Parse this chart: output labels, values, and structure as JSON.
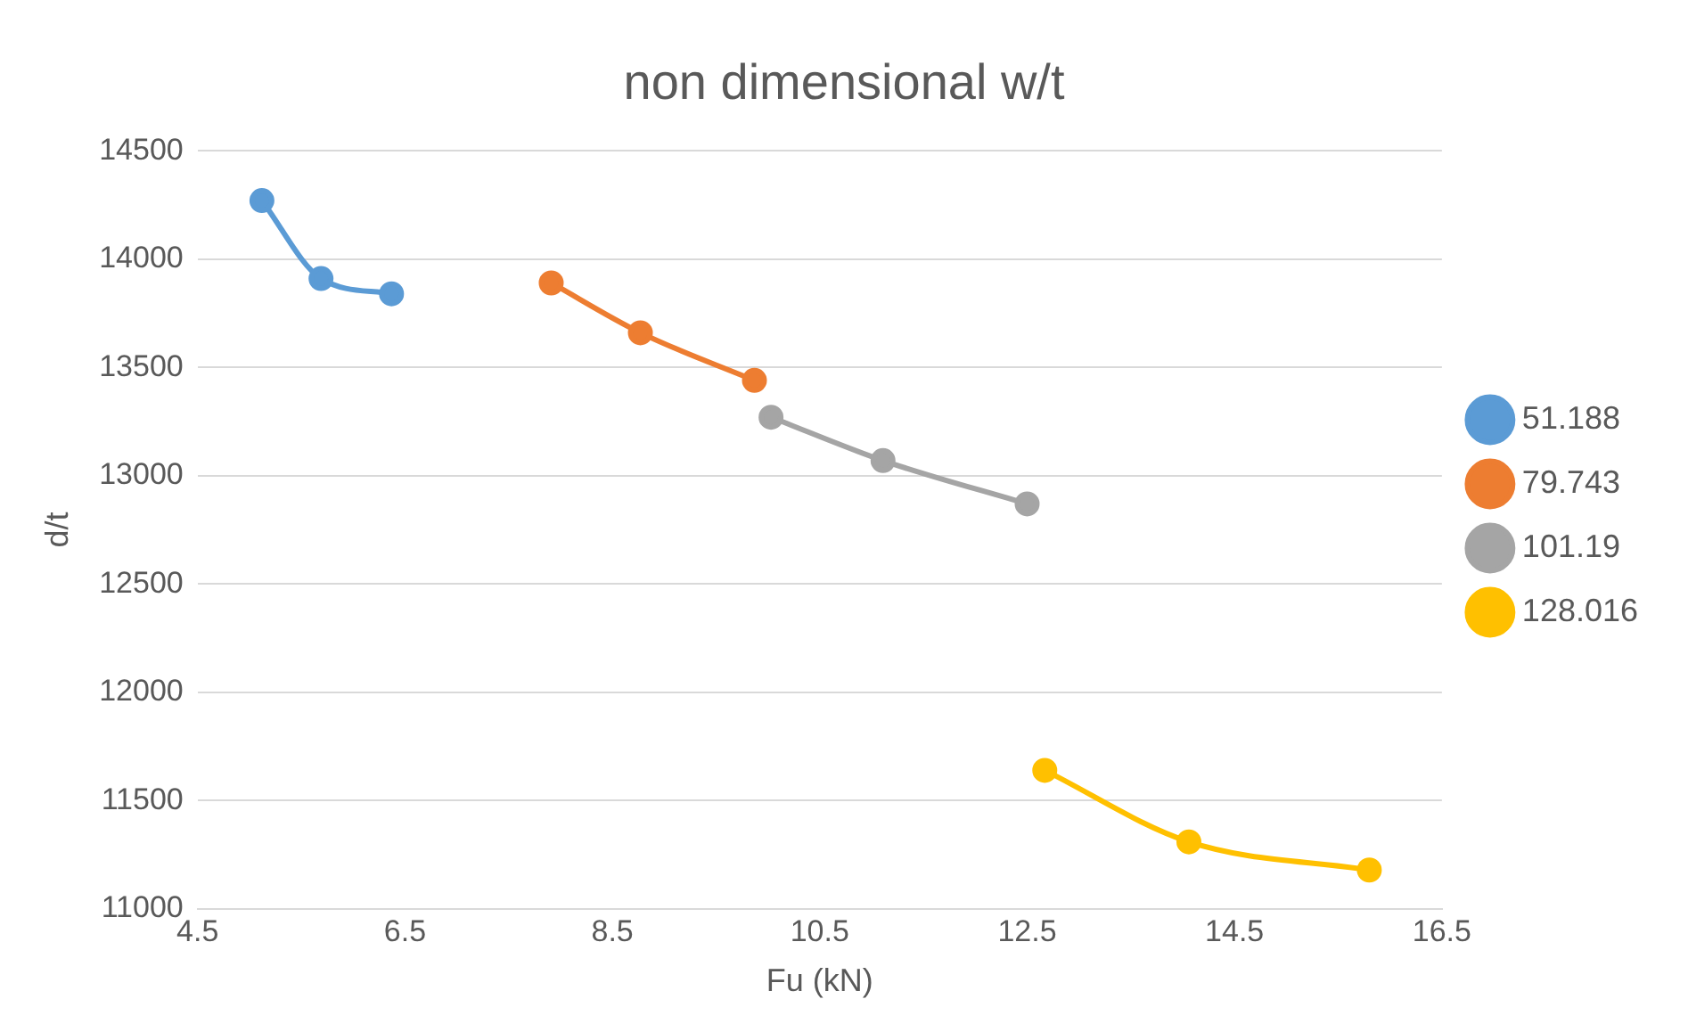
{
  "chart_data": {
    "type": "line",
    "title": "non dimensional w/t",
    "xlabel": "Fu (kN)",
    "ylabel": "d/t",
    "xlim": [
      4.5,
      16.5
    ],
    "xticks": [
      4.5,
      6.5,
      8.5,
      10.5,
      12.5,
      14.5,
      16.5
    ],
    "ylim": [
      11000,
      14500
    ],
    "yticks": [
      11000,
      11500,
      12000,
      12500,
      13000,
      13500,
      14000,
      14500
    ],
    "grid": "y",
    "legend": "right",
    "marker": "circle",
    "line_style": "solid",
    "series": [
      {
        "name": "51.188",
        "color": "#5b9bd5",
        "x": [
          5.12,
          5.69,
          6.37
        ],
        "values": [
          14270,
          13910,
          13840
        ]
      },
      {
        "name": "79.743",
        "color": "#ed7d31",
        "x": [
          7.91,
          8.77,
          9.87
        ],
        "values": [
          13890,
          13660,
          13440
        ]
      },
      {
        "name": "101.19",
        "color": "#a5a5a5",
        "x": [
          10.03,
          11.11,
          12.5
        ],
        "values": [
          13270,
          13070,
          12870
        ]
      },
      {
        "name": "128.016",
        "color": "#ffc000",
        "x": [
          12.67,
          14.06,
          15.8
        ],
        "values": [
          11640,
          11310,
          11180
        ]
      }
    ]
  }
}
